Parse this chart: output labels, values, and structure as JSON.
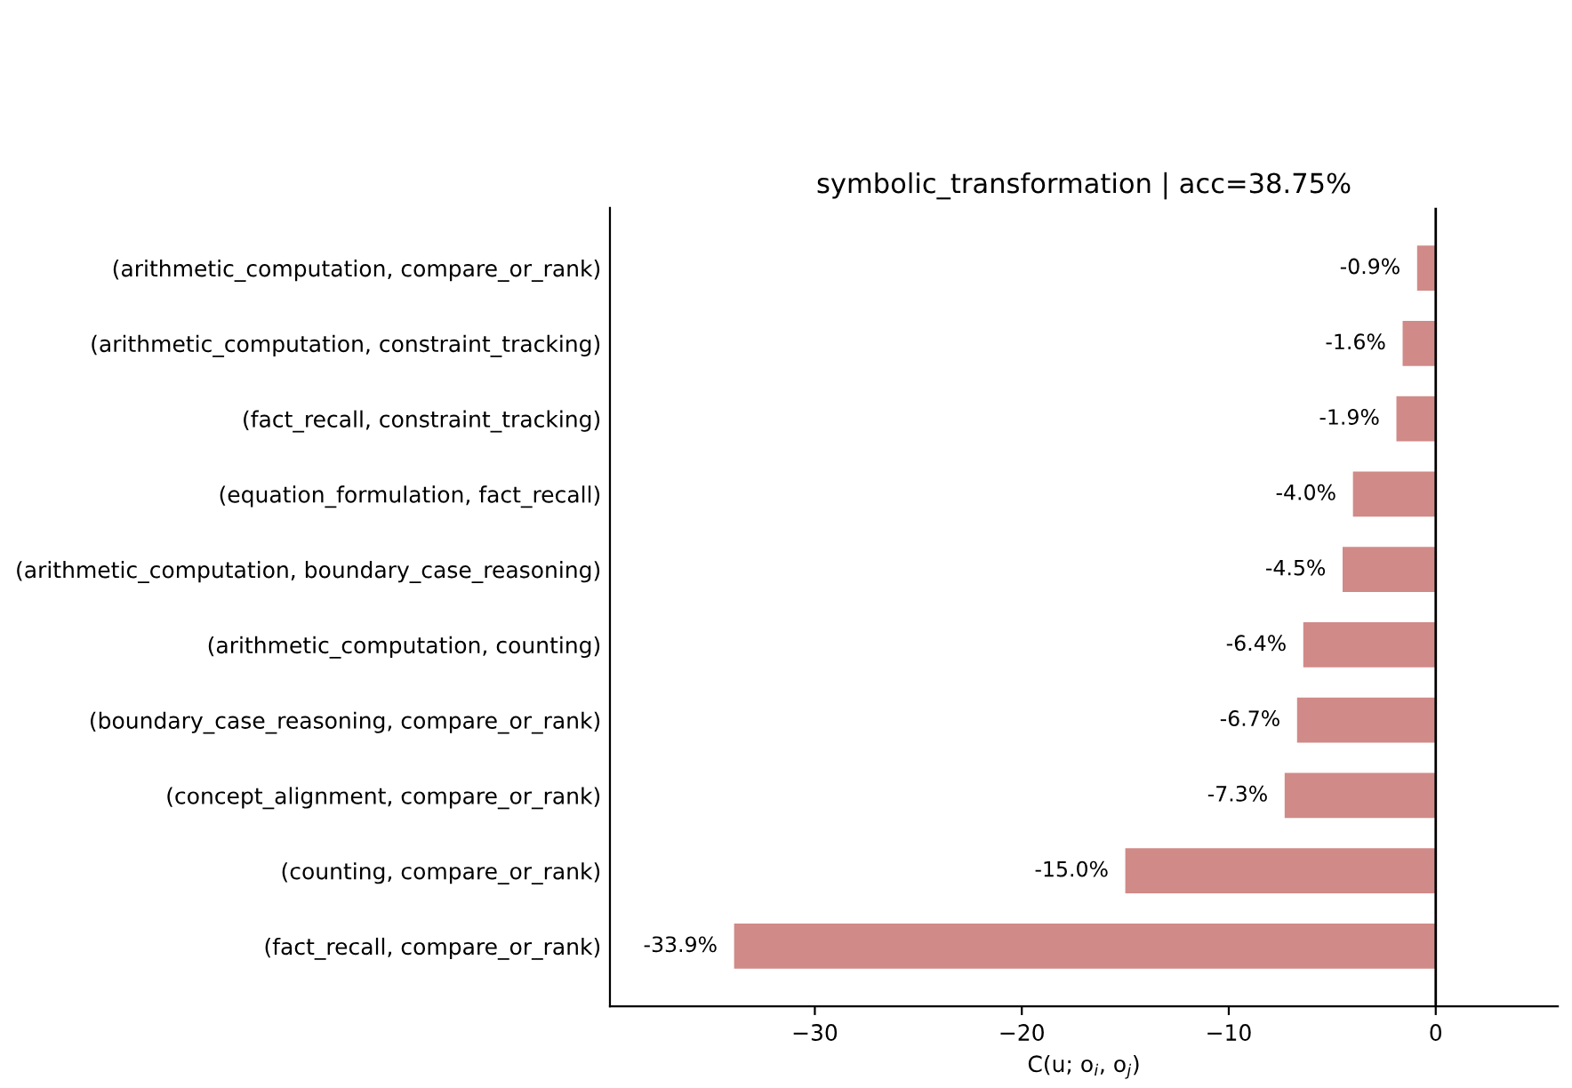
{
  "chart_data": {
    "type": "bar",
    "orientation": "horizontal",
    "title": "symbolic_transformation | acc=38.75%",
    "xlabel": "C(u; o$_{i}$, o$_{j}$)",
    "categories": [
      "(arithmetic_computation, compare_or_rank)",
      "(arithmetic_computation, constraint_tracking)",
      "(fact_recall, constraint_tracking)",
      "(equation_formulation, fact_recall)",
      "(arithmetic_computation, boundary_case_reasoning)",
      "(arithmetic_computation, counting)",
      "(boundary_case_reasoning, compare_or_rank)",
      "(concept_alignment, compare_or_rank)",
      "(counting, compare_or_rank)",
      "(fact_recall, compare_or_rank)"
    ],
    "values": [
      -0.9,
      -1.6,
      -1.9,
      -4.0,
      -4.5,
      -6.4,
      -6.7,
      -7.3,
      -15.0,
      -33.9
    ],
    "value_labels": [
      "-0.9%",
      "-1.6%",
      "-1.9%",
      "-4.0%",
      "-4.5%",
      "-6.4%",
      "-6.7%",
      "-7.3%",
      "-15.0%",
      "-33.9%"
    ],
    "color": "#d08a88",
    "xlim": [
      -39.9,
      5.9
    ],
    "xticks": [
      {
        "value": -30,
        "label": "−30"
      },
      {
        "value": -20,
        "label": "−20"
      },
      {
        "value": -10,
        "label": "−10"
      },
      0
    ],
    "ref_lines": [
      {
        "axis": "x",
        "value": 0,
        "color": "#000000"
      }
    ],
    "grid": false,
    "legend": false
  }
}
